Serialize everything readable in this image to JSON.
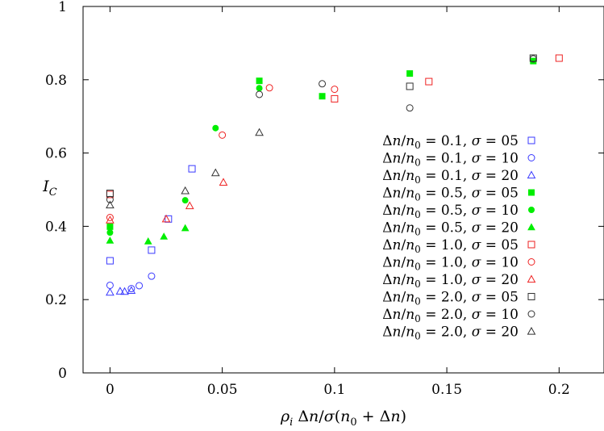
{
  "chart_data": {
    "type": "scatter",
    "xlabel": "ρ_i Δn/σ(n_0 + Δn)",
    "ylabel": "I_C",
    "xlim": [
      -0.012,
      0.22
    ],
    "ylim": [
      0,
      1
    ],
    "xticks": [
      "0",
      "0.05",
      "0.1",
      "0.15",
      "0.2"
    ],
    "xtick_values": [
      0,
      0.05,
      0.1,
      0.15,
      0.2
    ],
    "yticks": [
      "0",
      "0.2",
      "0.4",
      "0.6",
      "0.8",
      "1"
    ],
    "ytick_values": [
      0,
      0.2,
      0.4,
      0.6,
      0.8,
      1
    ],
    "grid": false,
    "legend_position": "right",
    "series": [
      {
        "name": "Δn/n0 = 0.1, σ = 05",
        "color": "#3a3aff",
        "marker": "square-open",
        "points": [
          [
            0,
            0.306
          ],
          [
            0.0185,
            0.335
          ],
          [
            0.026,
            0.42
          ],
          [
            0.0365,
            0.557
          ]
        ]
      },
      {
        "name": "Δn/n0 = 0.1, σ = 10",
        "color": "#3a3aff",
        "marker": "circle-open",
        "points": [
          [
            0,
            0.239
          ],
          [
            0.0095,
            0.23
          ],
          [
            0.013,
            0.238
          ],
          [
            0.0185,
            0.264
          ]
        ]
      },
      {
        "name": "Δn/n0 = 0.1, σ = 20",
        "color": "#3a3aff",
        "marker": "triangle-open",
        "points": [
          [
            0,
            0.22
          ],
          [
            0.0045,
            0.223
          ],
          [
            0.0065,
            0.222
          ],
          [
            0.0095,
            0.225
          ]
        ]
      },
      {
        "name": "Δn/n0 = 0.5, σ = 05",
        "color": "#00ee00",
        "marker": "square-filled",
        "points": [
          [
            0,
            0.399
          ],
          [
            0.0665,
            0.797
          ],
          [
            0.0945,
            0.755
          ],
          [
            0.1335,
            0.817
          ],
          [
            0.1885,
            0.851
          ]
        ]
      },
      {
        "name": "Δn/n0 = 0.5, σ = 10",
        "color": "#00ee00",
        "marker": "circle-filled",
        "points": [
          [
            0,
            0.383
          ],
          [
            0.0335,
            0.471
          ],
          [
            0.047,
            0.668
          ],
          [
            0.0665,
            0.777
          ]
        ]
      },
      {
        "name": "Δn/n0 = 0.5, σ = 20",
        "color": "#00ee00",
        "marker": "triangle-filled",
        "points": [
          [
            0,
            0.361
          ],
          [
            0.017,
            0.359
          ],
          [
            0.024,
            0.372
          ],
          [
            0.0335,
            0.395
          ]
        ]
      },
      {
        "name": "Δn/n0 = 1.0, σ = 05",
        "color": "#ee2222",
        "marker": "square-open",
        "points": [
          [
            0,
            0.487
          ],
          [
            0.1,
            0.748
          ],
          [
            0.142,
            0.795
          ],
          [
            0.2,
            0.859
          ]
        ]
      },
      {
        "name": "Δn/n0 = 1.0, σ = 10",
        "color": "#ee2222",
        "marker": "circle-open",
        "points": [
          [
            0,
            0.424
          ],
          [
            0.05,
            0.649
          ],
          [
            0.071,
            0.778
          ],
          [
            0.1,
            0.774
          ]
        ]
      },
      {
        "name": "Δn/n0 = 1.0, σ = 20",
        "color": "#ee2222",
        "marker": "triangle-open",
        "points": [
          [
            0,
            0.417
          ],
          [
            0.025,
            0.42
          ],
          [
            0.0355,
            0.456
          ],
          [
            0.0505,
            0.52
          ]
        ]
      },
      {
        "name": "Δn/n0 = 2.0, σ = 05",
        "color": "#333333",
        "marker": "square-open",
        "points": [
          [
            0,
            0.49
          ],
          [
            0.1335,
            0.782
          ],
          [
            0.1885,
            0.859
          ]
        ]
      },
      {
        "name": "Δn/n0 = 2.0, σ = 10",
        "color": "#333333",
        "marker": "circle-open",
        "points": [
          [
            0,
            0.473
          ],
          [
            0.0665,
            0.76
          ],
          [
            0.0945,
            0.789
          ],
          [
            0.1335,
            0.723
          ],
          [
            0.1885,
            0.857
          ]
        ]
      },
      {
        "name": "Δn/n0 = 2.0, σ = 20",
        "color": "#333333",
        "marker": "triangle-open",
        "points": [
          [
            0,
            0.458
          ],
          [
            0.0335,
            0.497
          ],
          [
            0.047,
            0.546
          ],
          [
            0.0665,
            0.656
          ]
        ]
      }
    ]
  }
}
